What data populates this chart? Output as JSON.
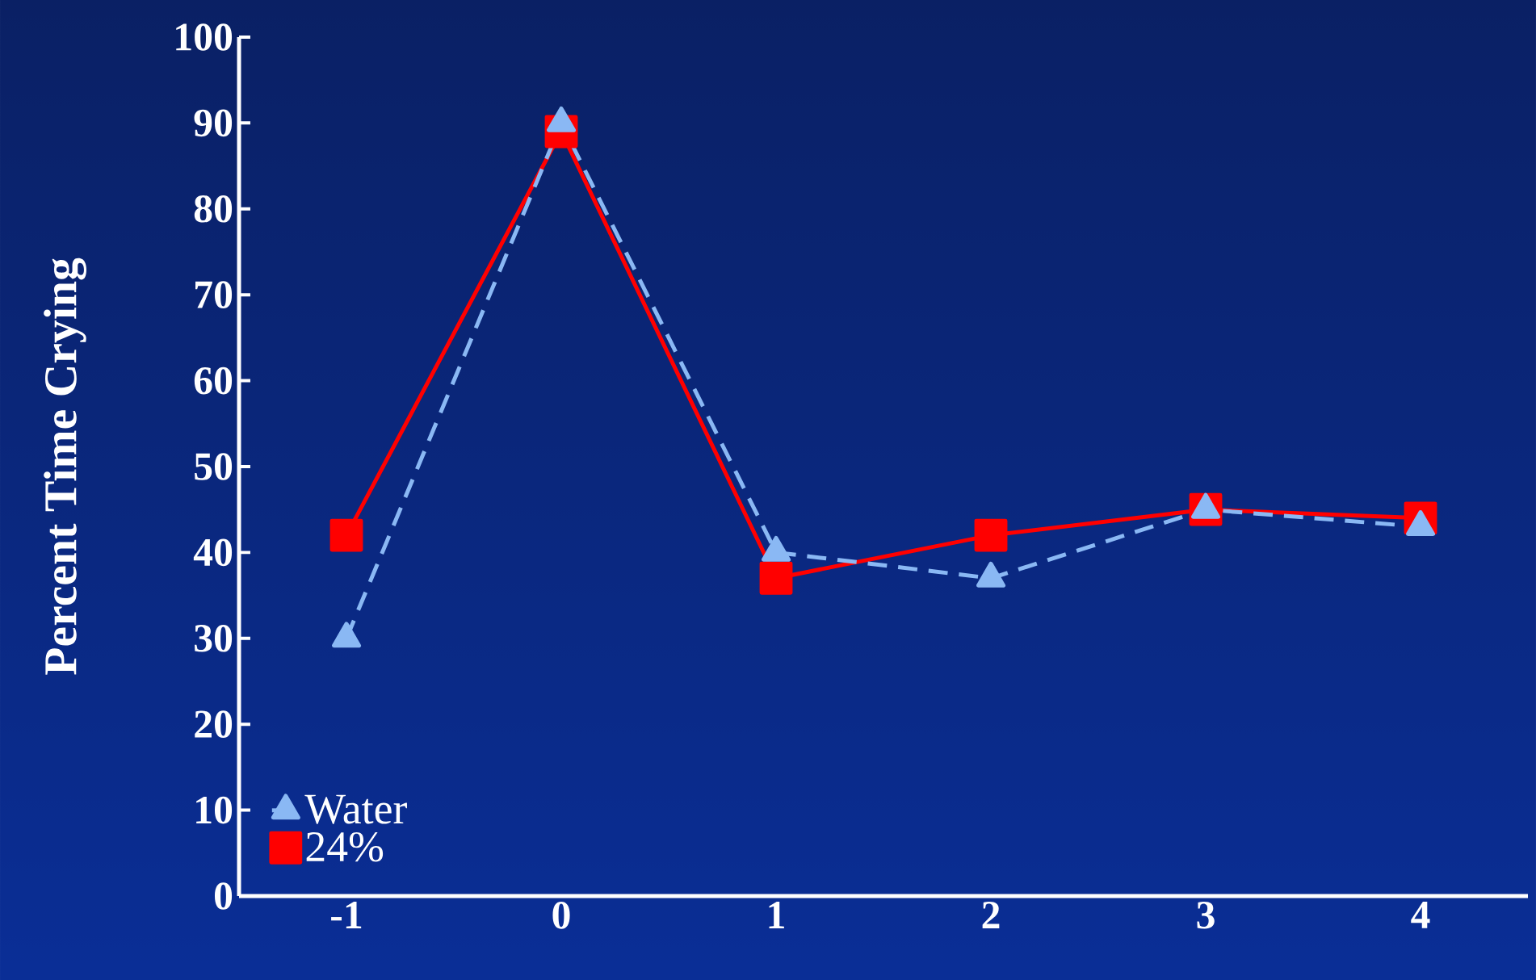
{
  "chart_data": {
    "type": "line",
    "ylabel": "Percent Time Crying",
    "x": [
      -1,
      0,
      1,
      2,
      3,
      4
    ],
    "xlim": [
      -1.5,
      4.5
    ],
    "xticks": [
      -1,
      0,
      1,
      2,
      3,
      4
    ],
    "ylim": [
      0,
      100
    ],
    "yticks": [
      0,
      10,
      20,
      30,
      40,
      50,
      60,
      70,
      80,
      90,
      100
    ],
    "legend": "bottom left",
    "grid": false,
    "series": [
      {
        "name": "Water",
        "color": "#8ab8f4",
        "marker": "triangle",
        "line_style": "dashed",
        "values": [
          30,
          90,
          40,
          37,
          45,
          43
        ]
      },
      {
        "name": "24%",
        "color": "#ff0000",
        "marker": "square",
        "line_style": "solid",
        "values": [
          42,
          89,
          37,
          42,
          45,
          44
        ]
      }
    ]
  }
}
